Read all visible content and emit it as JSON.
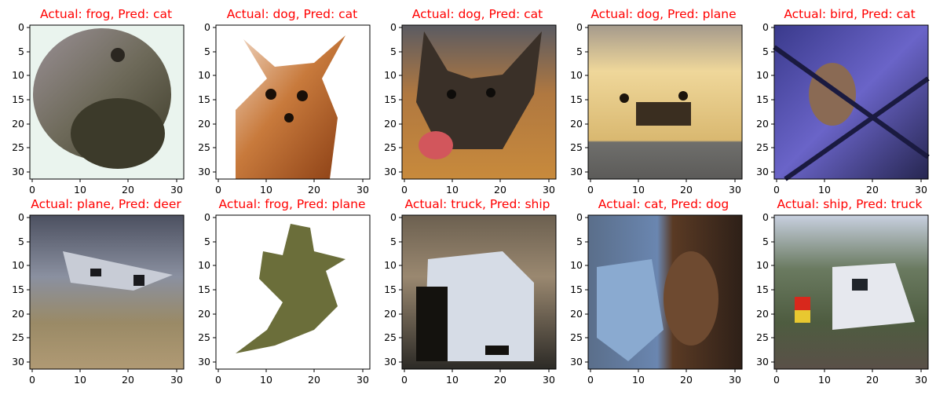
{
  "chart_data": [
    {
      "type": "other",
      "title": "Actual: frog, Pred: cat",
      "x_ticks": [
        "0",
        "10",
        "20",
        "30"
      ],
      "y_ticks": [
        "0",
        "5",
        "10",
        "15",
        "20",
        "25",
        "30"
      ],
      "xlim": [
        -0.5,
        31.5
      ],
      "ylim": [
        31.5,
        -0.5
      ]
    },
    {
      "type": "other",
      "title": "Actual: dog, Pred: cat",
      "x_ticks": [
        "0",
        "10",
        "20",
        "30"
      ],
      "y_ticks": [
        "0",
        "5",
        "10",
        "15",
        "20",
        "25",
        "30"
      ],
      "xlim": [
        -0.5,
        31.5
      ],
      "ylim": [
        31.5,
        -0.5
      ]
    },
    {
      "type": "other",
      "title": "Actual: dog, Pred: cat",
      "x_ticks": [
        "0",
        "10",
        "20",
        "30"
      ],
      "y_ticks": [
        "0",
        "5",
        "10",
        "15",
        "20",
        "25",
        "30"
      ],
      "xlim": [
        -0.5,
        31.5
      ],
      "ylim": [
        31.5,
        -0.5
      ]
    },
    {
      "type": "other",
      "title": "Actual: dog, Pred: plane",
      "x_ticks": [
        "0",
        "10",
        "20",
        "30"
      ],
      "y_ticks": [
        "0",
        "5",
        "10",
        "15",
        "20",
        "25",
        "30"
      ],
      "xlim": [
        -0.5,
        31.5
      ],
      "ylim": [
        31.5,
        -0.5
      ]
    },
    {
      "type": "other",
      "title": "Actual: bird, Pred: cat",
      "x_ticks": [
        "0",
        "10",
        "20",
        "30"
      ],
      "y_ticks": [
        "0",
        "5",
        "10",
        "15",
        "20",
        "25",
        "30"
      ],
      "xlim": [
        -0.5,
        31.5
      ],
      "ylim": [
        31.5,
        -0.5
      ]
    },
    {
      "type": "other",
      "title": "Actual: plane, Pred: deer",
      "x_ticks": [
        "0",
        "10",
        "20",
        "30"
      ],
      "y_ticks": [
        "0",
        "5",
        "10",
        "15",
        "20",
        "25",
        "30"
      ],
      "xlim": [
        -0.5,
        31.5
      ],
      "ylim": [
        31.5,
        -0.5
      ]
    },
    {
      "type": "other",
      "title": "Actual: frog, Pred: plane",
      "x_ticks": [
        "0",
        "10",
        "20",
        "30"
      ],
      "y_ticks": [
        "0",
        "5",
        "10",
        "15",
        "20",
        "25",
        "30"
      ],
      "xlim": [
        -0.5,
        31.5
      ],
      "ylim": [
        31.5,
        -0.5
      ]
    },
    {
      "type": "other",
      "title": "Actual: truck, Pred: ship",
      "x_ticks": [
        "0",
        "10",
        "20",
        "30"
      ],
      "y_ticks": [
        "0",
        "5",
        "10",
        "15",
        "20",
        "25",
        "30"
      ],
      "xlim": [
        -0.5,
        31.5
      ],
      "ylim": [
        31.5,
        -0.5
      ]
    },
    {
      "type": "other",
      "title": "Actual: cat, Pred: dog",
      "x_ticks": [
        "0",
        "10",
        "20",
        "30"
      ],
      "y_ticks": [
        "0",
        "5",
        "10",
        "15",
        "20",
        "25",
        "30"
      ],
      "xlim": [
        -0.5,
        31.5
      ],
      "ylim": [
        31.5,
        -0.5
      ]
    },
    {
      "type": "other",
      "title": "Actual: ship, Pred: truck",
      "x_ticks": [
        "0",
        "10",
        "20",
        "30"
      ],
      "y_ticks": [
        "0",
        "5",
        "10",
        "15",
        "20",
        "25",
        "30"
      ],
      "xlim": [
        -0.5,
        31.5
      ],
      "ylim": [
        31.5,
        -0.5
      ]
    }
  ],
  "colors": {
    "title": "#ff0000",
    "axis": "#000000",
    "background": "#ffffff"
  }
}
